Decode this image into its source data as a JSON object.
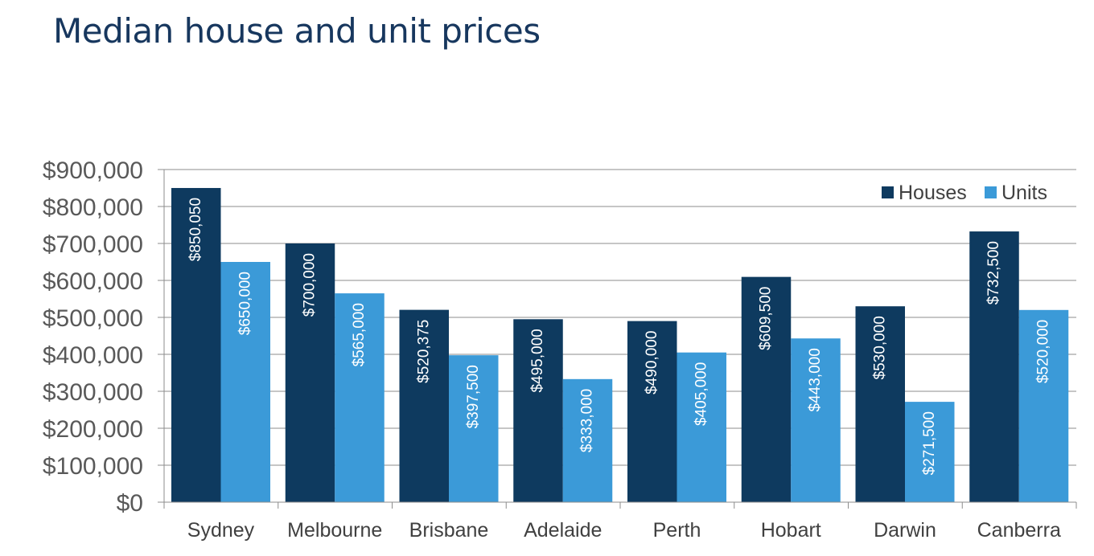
{
  "page": {
    "title": "Median house and unit prices"
  },
  "chart_data": {
    "type": "bar",
    "title": "Median house and unit prices",
    "xlabel": "",
    "ylabel": "",
    "categories": [
      "Sydney",
      "Melbourne",
      "Brisbane",
      "Adelaide",
      "Perth",
      "Hobart",
      "Darwin",
      "Canberra"
    ],
    "series": [
      {
        "name": "Houses",
        "color": "#0e3a5f",
        "values": [
          850050,
          700000,
          520375,
          495000,
          490000,
          609500,
          530000,
          732500
        ],
        "labels": [
          "$850,050",
          "$700,000",
          "$520,375",
          "$495,000",
          "$490,000",
          "$609,500",
          "$530,000",
          "$732,500"
        ]
      },
      {
        "name": "Units",
        "color": "#3b9ad8",
        "values": [
          650000,
          565000,
          397500,
          333000,
          405000,
          443000,
          271500,
          520000
        ],
        "labels": [
          "$650,000",
          "$565,000",
          "$397,500",
          "$333,000",
          "$405,000",
          "$443,000",
          "$271,500",
          "$520,000"
        ]
      }
    ],
    "ylim": [
      0,
      900000
    ],
    "yticks": [
      0,
      100000,
      200000,
      300000,
      400000,
      500000,
      600000,
      700000,
      800000,
      900000
    ],
    "ytick_labels": [
      "$0",
      "$100,000",
      "$200,000",
      "$300,000",
      "$400,000",
      "$500,000",
      "$600,000",
      "$700,000",
      "$800,000",
      "$900,000"
    ],
    "grid": true,
    "legend": "top-right",
    "data_labels": "inside-end-rotated"
  }
}
